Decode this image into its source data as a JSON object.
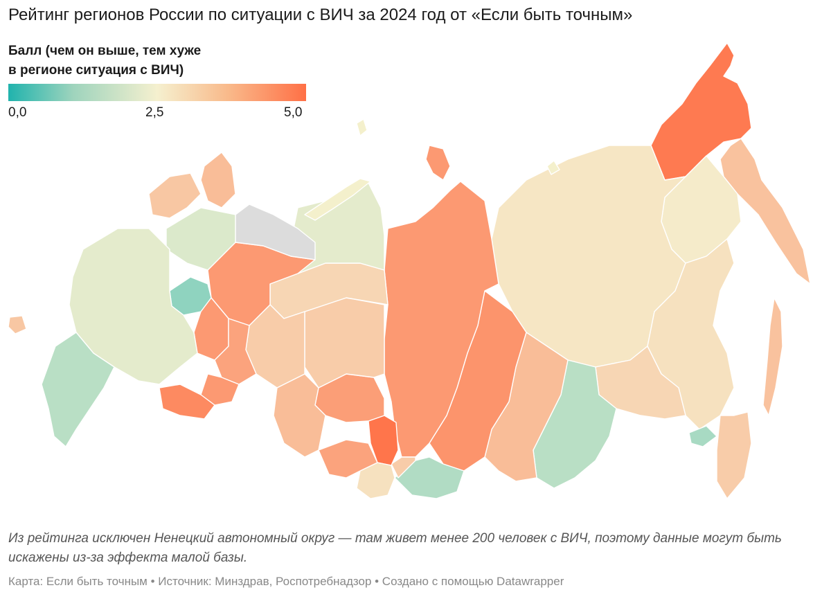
{
  "title": "Рейтинг регионов России по ситуации с ВИЧ за 2024 год от «Если быть точным»",
  "legend": {
    "title_line1": "Балл (чем он выше, тем хуже",
    "title_line2": "в регионе ситуация с ВИЧ)",
    "min_label": "0,0",
    "mid_label": "2,5",
    "max_label": "5,0",
    "colors": [
      "#20b3ad",
      "#f5f0cf",
      "#ff7046"
    ]
  },
  "map": {
    "no_data_color": "#dcdcdc",
    "regions": [
      {
        "name": "chukotka",
        "score": 4.8
      },
      {
        "name": "kamchatka",
        "score": 3.4
      },
      {
        "name": "magadan",
        "score": 2.6
      },
      {
        "name": "yakutia",
        "score": 2.7
      },
      {
        "name": "krasnoyarsk",
        "score": 4.2
      },
      {
        "name": "evenkia-north",
        "score": 4.2
      },
      {
        "name": "irkutsk",
        "score": 4.3
      },
      {
        "name": "buryatia",
        "score": 3.5
      },
      {
        "name": "zabaykalsky",
        "score": 1.8
      },
      {
        "name": "amur",
        "score": 3.0
      },
      {
        "name": "khabarovsk",
        "score": 2.8
      },
      {
        "name": "primorye",
        "score": 3.2
      },
      {
        "name": "jewish-ao",
        "score": 1.6
      },
      {
        "name": "sakhalin",
        "score": 3.4
      },
      {
        "name": "tomsk",
        "score": 3.2
      },
      {
        "name": "novosibirsk",
        "score": 4.1
      },
      {
        "name": "kemerovo",
        "score": 4.9
      },
      {
        "name": "altai-krai",
        "score": 4.0
      },
      {
        "name": "altai-republic",
        "score": 2.8
      },
      {
        "name": "tuva",
        "score": 1.7
      },
      {
        "name": "khakassia",
        "score": 3.2
      },
      {
        "name": "omsk",
        "score": 3.5
      },
      {
        "name": "tyumen",
        "score": 3.2
      },
      {
        "name": "khmao",
        "score": 3.0
      },
      {
        "name": "yamal",
        "score": 2.3
      },
      {
        "name": "komi",
        "score": 4.2
      },
      {
        "name": "nenets",
        "score": null
      },
      {
        "name": "arkhangelsk",
        "score": 2.2
      },
      {
        "name": "murmansk",
        "score": 3.5
      },
      {
        "name": "karelia",
        "score": 3.3
      },
      {
        "name": "sverdlovsk",
        "score": 4.0
      },
      {
        "name": "chelyabinsk",
        "score": 4.2
      },
      {
        "name": "perm",
        "score": 4.2
      },
      {
        "name": "orenburg",
        "score": 4.5
      },
      {
        "name": "kirov",
        "score": 1.3
      },
      {
        "name": "central-group",
        "score": 2.3
      },
      {
        "name": "south-group",
        "score": 1.8
      },
      {
        "name": "kaliningrad",
        "score": 3.3
      }
    ]
  },
  "note": "Из рейтинга исключен Ненецкий автономный округ — там живет менее 200 человек с ВИЧ, поэтому данные могут быть искажены из-за эффекта малой базы.",
  "credits": "Карта: Если быть точным • Источник: Минздрав, Роспотребнадзор • Создано с помощью Datawrapper"
}
